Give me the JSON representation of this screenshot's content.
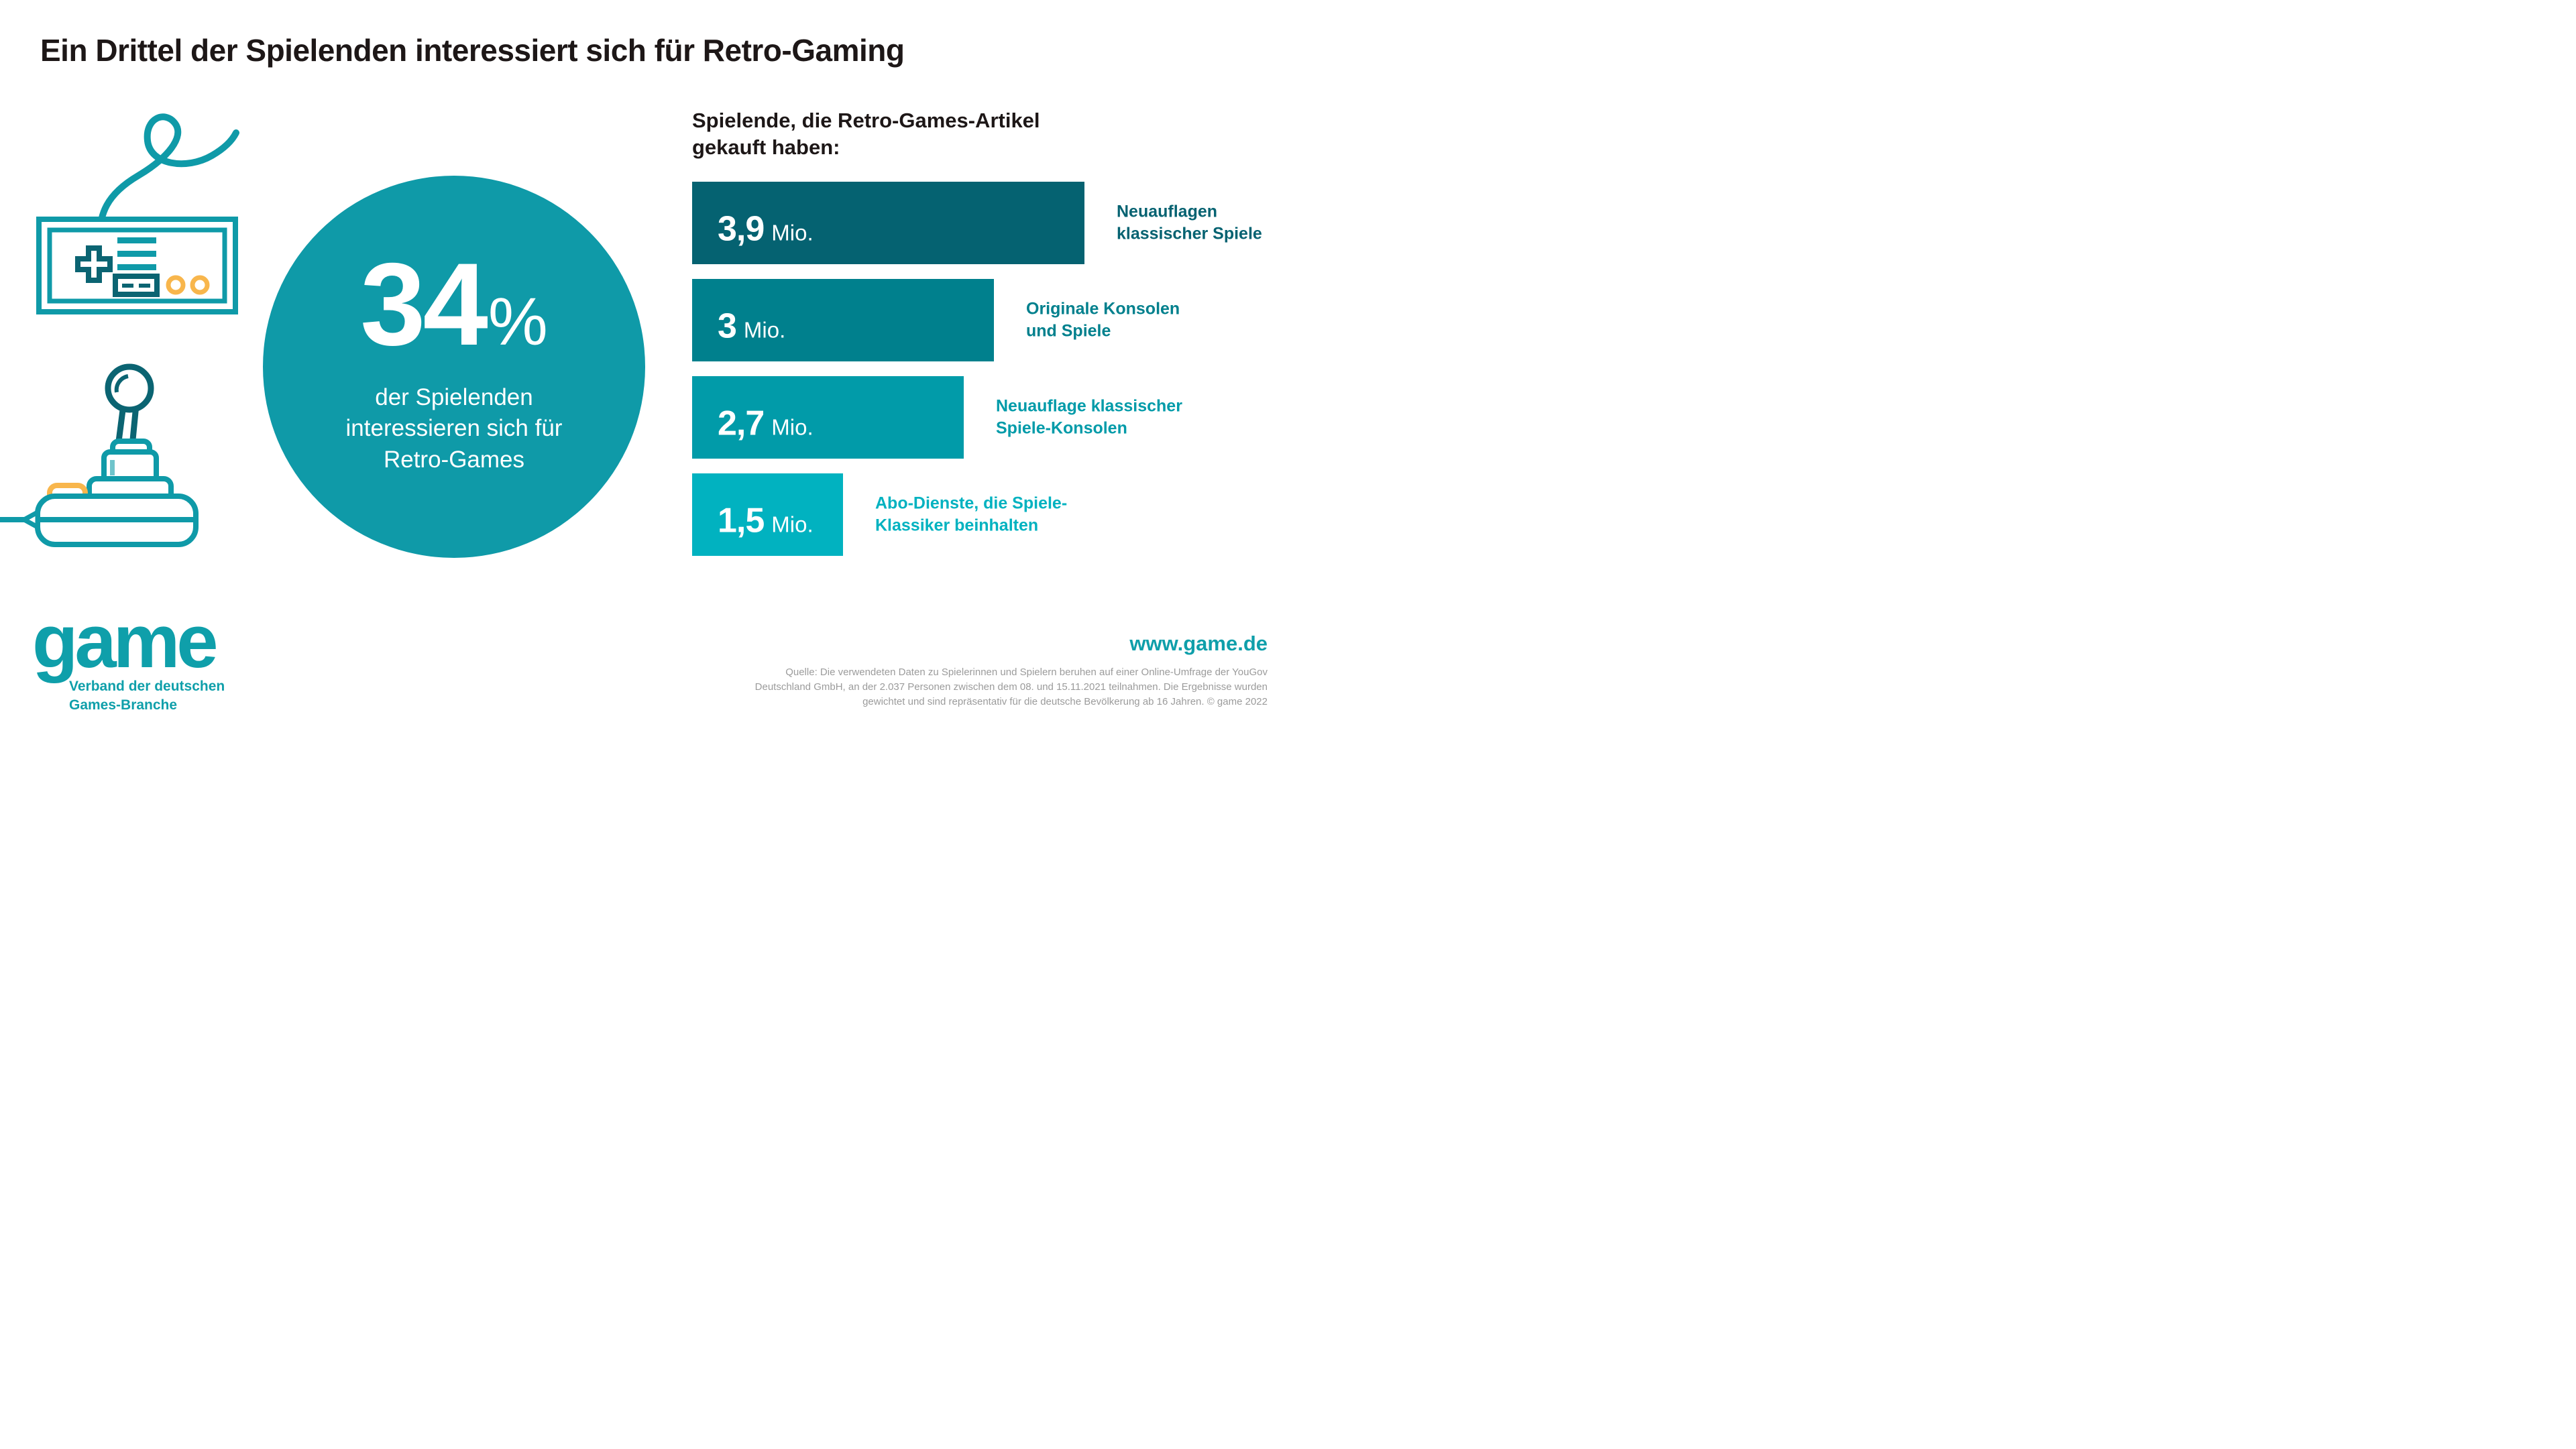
{
  "title": "Ein Drittel der Spielenden interessiert sich für Retro-Gaming",
  "colors": {
    "accent_teal": "#0f9aa8",
    "logo_teal": "#0f9faa",
    "dark_teal": "#0b6472",
    "yellow": "#f8b64c",
    "text_dark": "#1d1717",
    "source_gray": "#9b9b9b"
  },
  "highlight_circle": {
    "value": "34",
    "percent_sign": "%",
    "line1": "der Spielenden",
    "line2": "interessieren sich für",
    "line3": "Retro-Games",
    "fill": "#0f9aa8"
  },
  "chart": {
    "heading_line1": "Spielende, die Retro-Games-Artikel",
    "heading_line2": "gekauft haben:",
    "bars": [
      {
        "value": 3.9,
        "value_label": "3,9",
        "unit": "Mio.",
        "label_line1": "Neuauflagen",
        "label_line2": "klassischer Spiele",
        "color": "#056271"
      },
      {
        "value": 3.0,
        "value_label": "3",
        "unit": "Mio.",
        "label_line1": "Originale Konsolen",
        "label_line2": "und Spiele",
        "color": "#00808d"
      },
      {
        "value": 2.7,
        "value_label": "2,7",
        "unit": "Mio.",
        "label_line1": "Neuauflage klassischer",
        "label_line2": "Spiele-Konsolen",
        "color": "#019ba9"
      },
      {
        "value": 1.5,
        "value_label": "1,5",
        "unit": "Mio.",
        "label_line1": "Abo-Dienste, die Spiele-",
        "label_line2": "Klassiker beinhalten",
        "color": "#01b2c0"
      }
    ]
  },
  "chart_data": {
    "type": "bar",
    "orientation": "horizontal",
    "title": "Spielende, die Retro-Games-Artikel gekauft haben:",
    "categories": [
      "Neuauflagen klassischer Spiele",
      "Originale Konsolen und Spiele",
      "Neuauflage klassischer Spiele-Konsolen",
      "Abo-Dienste, die Spiele-Klassiker beinhalten"
    ],
    "values": [
      3.9,
      3.0,
      2.7,
      1.5
    ],
    "value_labels": [
      "3,9 Mio.",
      "3 Mio.",
      "2,7 Mio.",
      "1,5 Mio."
    ],
    "unit": "Mio.",
    "xlim": [
      0,
      3.9
    ],
    "grid": false,
    "legend": false,
    "bar_colors": [
      "#056271",
      "#00808d",
      "#019ba9",
      "#01b2c0"
    ],
    "annotation": "34% der Spielenden interessieren sich für Retro-Games"
  },
  "footer": {
    "logo_text": "game",
    "logo_sub_line1": "Verband der deutschen",
    "logo_sub_line2": "Games-Branche",
    "website": "www.game.de",
    "source_line1": "Quelle: Die verwendeten Daten zu Spielerinnen und Spielern beruhen auf einer Online-Umfrage der YouGov",
    "source_line2": "Deutschland GmbH, an der 2.037 Personen zwischen dem 08. und 15.11.2021 teilnahmen. Die Ergebnisse wurden",
    "source_line3": "gewichtet und sind repräsentativ für die deutsche Bevölkerung ab 16 Jahren. © game 2022"
  }
}
